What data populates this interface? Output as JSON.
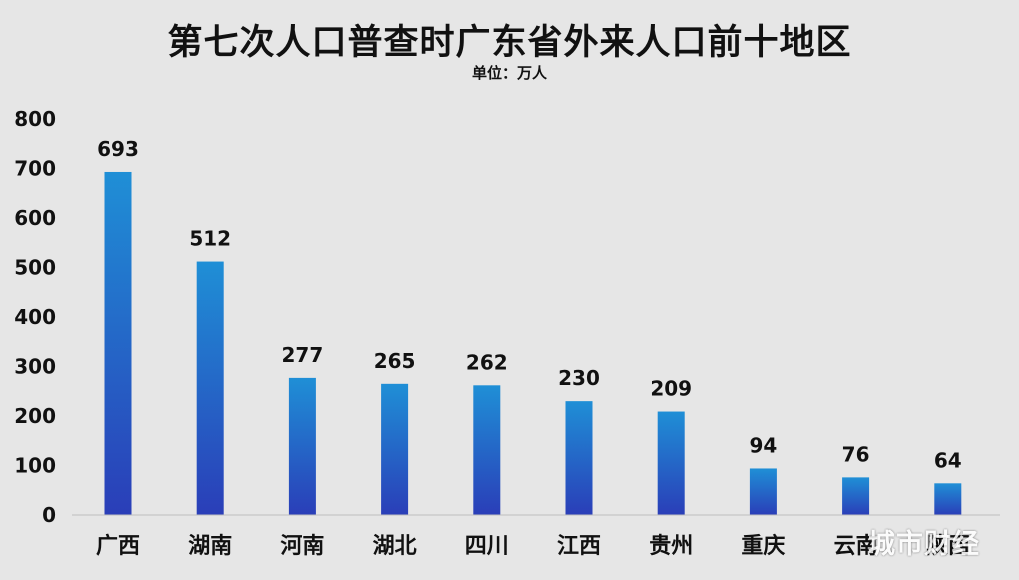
{
  "chart_data": {
    "type": "bar",
    "title": "第七次人口普查时广东省外来人口前十地区",
    "subtitle": "单位：万人",
    "categories": [
      "广西",
      "湖南",
      "河南",
      "湖北",
      "四川",
      "江西",
      "贵州",
      "重庆",
      "云南",
      "陕西"
    ],
    "values": [
      693,
      512,
      277,
      265,
      262,
      230,
      209,
      94,
      76,
      64
    ],
    "ylim": [
      0,
      800
    ],
    "yticks": [
      0,
      100,
      200,
      300,
      400,
      500,
      600,
      700,
      800
    ],
    "grid": false,
    "legend": "none",
    "bar_gradient": [
      "#1f8fd6",
      "#2a3eb8"
    ]
  },
  "watermark": "城市财经"
}
